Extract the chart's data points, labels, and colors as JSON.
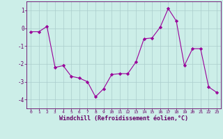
{
  "x": [
    0,
    1,
    2,
    3,
    4,
    5,
    6,
    7,
    8,
    9,
    10,
    11,
    12,
    13,
    14,
    15,
    16,
    17,
    18,
    19,
    20,
    21,
    22,
    23
  ],
  "y": [
    -0.2,
    -0.2,
    0.1,
    -2.2,
    -2.1,
    -2.7,
    -2.8,
    -3.0,
    -3.85,
    -3.4,
    -2.6,
    -2.55,
    -2.55,
    -1.9,
    -0.6,
    -0.55,
    0.05,
    1.1,
    0.4,
    -2.1,
    -1.15,
    -1.15,
    -3.3,
    -3.6
  ],
  "line_color": "#990099",
  "marker": "D",
  "marker_size": 2.2,
  "bg_color": "#cceee8",
  "grid_color": "#aacccc",
  "xlabel": "Windchill (Refroidissement éolien,°C)",
  "xlabel_color": "#660066",
  "tick_color": "#660066",
  "ylim": [
    -4.5,
    1.5
  ],
  "yticks": [
    -4,
    -3,
    -2,
    -1,
    0,
    1
  ],
  "xticks": [
    0,
    1,
    2,
    3,
    4,
    5,
    6,
    7,
    8,
    9,
    10,
    11,
    12,
    13,
    14,
    15,
    16,
    17,
    18,
    19,
    20,
    21,
    22,
    23
  ],
  "spine_color": "#660066",
  "fig_bg": "#cceee8"
}
